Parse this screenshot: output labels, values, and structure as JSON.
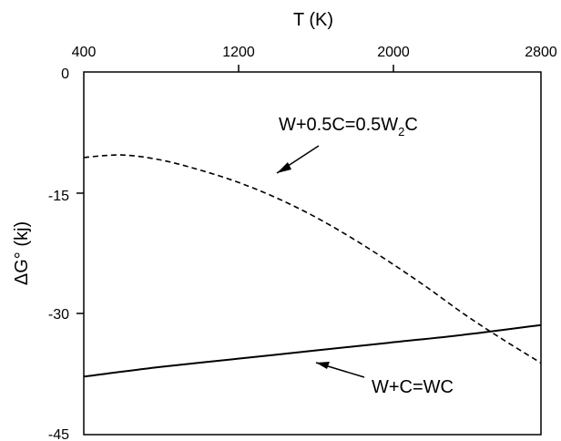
{
  "chart_data": {
    "type": "line",
    "xlabel": "T (K)",
    "ylabel": "ΔG° (kj)",
    "xlim": [
      400,
      2800
    ],
    "ylim": [
      -45,
      0
    ],
    "x_ticks": [
      "400",
      "1200",
      "2000",
      "2800"
    ],
    "y_ticks": [
      "0",
      "-15",
      "-30",
      "-45"
    ],
    "x_axis_position": "top",
    "grid": false,
    "legend": "none",
    "series": [
      {
        "style": "dashed",
        "color": "#000000",
        "x": [
          400,
          600,
          800,
          1000,
          1200,
          1400,
          1600,
          1800,
          2000,
          2200,
          2400,
          2600,
          2800
        ],
        "y": [
          -10.6,
          -10.3,
          -10.9,
          -12.1,
          -13.6,
          -15.5,
          -17.8,
          -20.5,
          -23.5,
          -26.7,
          -30.1,
          -33.2,
          -36.1
        ]
      },
      {
        "style": "solid",
        "color": "#000000",
        "x": [
          400,
          800,
          1200,
          1600,
          2000,
          2400,
          2800
        ],
        "y": [
          -37.8,
          -36.6,
          -35.6,
          -34.6,
          -33.6,
          -32.6,
          -31.4
        ]
      }
    ],
    "annotations": [
      {
        "text": "W+0.5C=0.5W",
        "sub": "2",
        "suffix": "C",
        "target_series": 0
      },
      {
        "text": "W+C=WC",
        "target_series": 1
      }
    ]
  }
}
